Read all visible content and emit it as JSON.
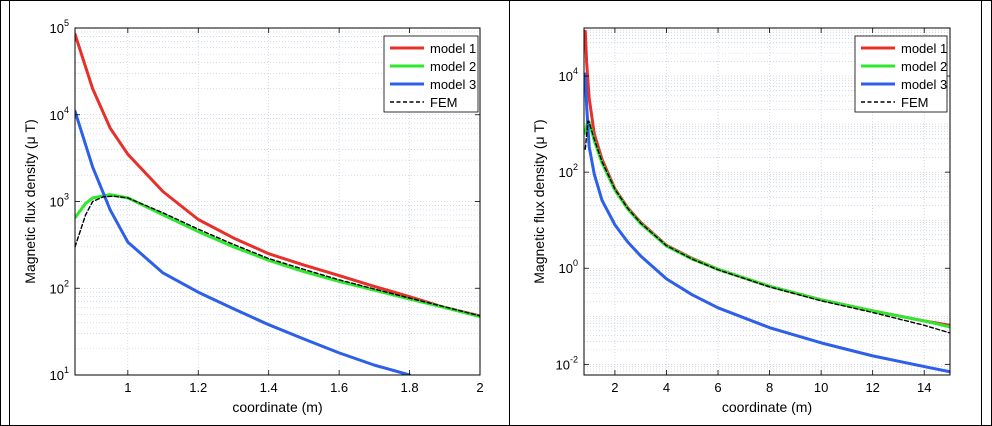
{
  "chart_data": [
    {
      "type": "line",
      "title": "",
      "xlabel": "coordinate (m)",
      "ylabel": "Magnetic flux density (μ T)",
      "y_scale": "log",
      "xlim": [
        0.85,
        2.0
      ],
      "ylim": [
        10,
        100000
      ],
      "grid": true,
      "legend_position": "top-right",
      "x_ticks": [
        {
          "value": 1,
          "label": "1"
        },
        {
          "value": 1.2,
          "label": "1.2"
        },
        {
          "value": 1.4,
          "label": "1.4"
        },
        {
          "value": 1.6,
          "label": "1.6"
        },
        {
          "value": 1.8,
          "label": "1.8"
        },
        {
          "value": 2,
          "label": "2"
        }
      ],
      "y_ticks": [
        {
          "value": 10,
          "base": "10",
          "exp": "1"
        },
        {
          "value": 100,
          "base": "10",
          "exp": "2"
        },
        {
          "value": 1000,
          "base": "10",
          "exp": "3"
        },
        {
          "value": 10000,
          "base": "10",
          "exp": "4"
        },
        {
          "value": 100000,
          "base": "10",
          "exp": "5"
        }
      ],
      "series": [
        {
          "name": "model 1",
          "color": "#e8302a",
          "style": "solid",
          "x": [
            0.85,
            0.9,
            0.95,
            1.0,
            1.1,
            1.2,
            1.3,
            1.4,
            1.5,
            1.6,
            1.7,
            1.8,
            1.9,
            2.0
          ],
          "y": [
            85000,
            20000,
            7000,
            3500,
            1300,
            620,
            380,
            250,
            185,
            140,
            105,
            80,
            60,
            48
          ]
        },
        {
          "name": "model 2",
          "color": "#2de82d",
          "style": "solid",
          "x": [
            0.85,
            0.88,
            0.9,
            0.95,
            1.0,
            1.1,
            1.2,
            1.3,
            1.4,
            1.5,
            1.6,
            1.7,
            1.8,
            1.9,
            2.0
          ],
          "y": [
            650,
            950,
            1100,
            1200,
            1100,
            700,
            450,
            300,
            210,
            155,
            120,
            95,
            75,
            60,
            47
          ]
        },
        {
          "name": "model 3",
          "color": "#2d5fe8",
          "style": "solid",
          "x": [
            0.85,
            0.9,
            0.95,
            1.0,
            1.1,
            1.2,
            1.3,
            1.4,
            1.5,
            1.6,
            1.7,
            1.8
          ],
          "y": [
            11000,
            2500,
            800,
            340,
            150,
            90,
            58,
            38,
            26,
            18,
            13,
            10
          ]
        },
        {
          "name": "FEM",
          "color": "#000000",
          "style": "dashed",
          "x": [
            0.85,
            0.88,
            0.9,
            0.93,
            0.96,
            1.0,
            1.1,
            1.2,
            1.3,
            1.4,
            1.5,
            1.6,
            1.7,
            1.8,
            1.9,
            2.0
          ],
          "y": [
            300,
            700,
            1000,
            1130,
            1150,
            1100,
            740,
            480,
            320,
            220,
            165,
            125,
            98,
            77,
            61,
            48
          ]
        }
      ]
    },
    {
      "type": "line",
      "title": "",
      "xlabel": "coordinate (m)",
      "ylabel": "Magnetic flux density (μ T)",
      "y_scale": "log",
      "xlim": [
        0.8,
        15
      ],
      "ylim": [
        0.006,
        100000
      ],
      "grid": true,
      "legend_position": "top-right",
      "x_ticks": [
        {
          "value": 2,
          "label": "2"
        },
        {
          "value": 4,
          "label": "4"
        },
        {
          "value": 6,
          "label": "6"
        },
        {
          "value": 8,
          "label": "8"
        },
        {
          "value": 10,
          "label": "10"
        },
        {
          "value": 12,
          "label": "12"
        },
        {
          "value": 14,
          "label": "14"
        }
      ],
      "y_ticks": [
        {
          "value": 0.01,
          "base": "10",
          "exp": "-2"
        },
        {
          "value": 1,
          "base": "10",
          "exp": "0"
        },
        {
          "value": 100,
          "base": "10",
          "exp": "2"
        },
        {
          "value": 10000,
          "base": "10",
          "exp": "4"
        }
      ],
      "series": [
        {
          "name": "model 1",
          "color": "#e8302a",
          "style": "solid",
          "x": [
            0.85,
            0.9,
            1.0,
            1.2,
            1.5,
            2,
            2.5,
            3,
            4,
            5,
            6,
            8,
            10,
            12,
            14,
            15
          ],
          "y": [
            85000,
            20000,
            3500,
            620,
            185,
            45,
            18,
            9,
            3,
            1.6,
            0.95,
            0.42,
            0.22,
            0.13,
            0.08,
            0.065
          ]
        },
        {
          "name": "model 2",
          "color": "#2de82d",
          "style": "solid",
          "x": [
            0.85,
            0.95,
            1.0,
            1.2,
            1.5,
            2,
            2.5,
            3,
            4,
            5,
            6,
            8,
            10,
            12,
            14,
            15
          ],
          "y": [
            650,
            1200,
            1100,
            450,
            155,
            42,
            17,
            8.5,
            2.9,
            1.55,
            0.95,
            0.42,
            0.22,
            0.13,
            0.08,
            0.06
          ]
        },
        {
          "name": "model 3",
          "color": "#2d5fe8",
          "style": "solid",
          "x": [
            0.85,
            0.9,
            1.0,
            1.2,
            1.5,
            2,
            2.5,
            3,
            4,
            5,
            6,
            8,
            10,
            12,
            14,
            15
          ],
          "y": [
            11000,
            2500,
            340,
            90,
            26,
            8,
            3.5,
            1.8,
            0.6,
            0.28,
            0.15,
            0.058,
            0.028,
            0.015,
            0.009,
            0.007
          ]
        },
        {
          "name": "FEM",
          "color": "#000000",
          "style": "dashed",
          "x": [
            0.85,
            0.95,
            1.0,
            1.2,
            1.5,
            2,
            2.5,
            3,
            4,
            5,
            6,
            8,
            10,
            12,
            14,
            15
          ],
          "y": [
            300,
            1150,
            1100,
            480,
            165,
            44,
            17.5,
            8.7,
            2.95,
            1.55,
            0.93,
            0.41,
            0.21,
            0.12,
            0.065,
            0.045
          ]
        }
      ]
    }
  ]
}
